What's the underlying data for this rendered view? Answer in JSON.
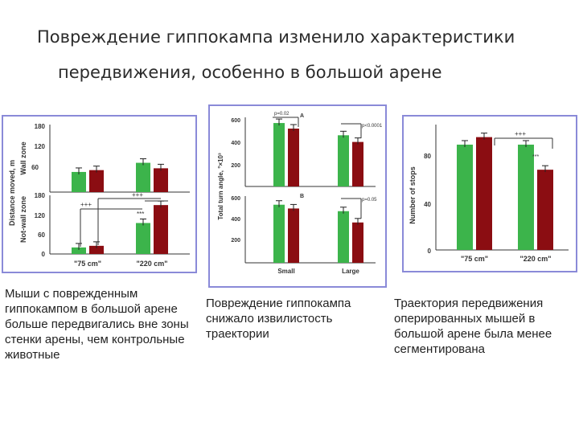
{
  "slide": {
    "title_line1": "Повреждение гиппокампа изменило характеристики",
    "title_line2": "передвижения, особенно в большой арене"
  },
  "colors": {
    "green": "#3cb44b",
    "red": "#8b0d12",
    "frame": "#8a8ad8"
  },
  "captions": {
    "left": "Мыши с поврежденным гиппокампом в большой арене больше передвигались вне зоны стенки арены, чем контрольные животные",
    "middle": "Повреждение гиппокампа снижало извилистость траектории",
    "right": "Траектория передвижения оперированных мышей в большой арене была менее сегментирована"
  },
  "chart_data": [
    {
      "type": "bar",
      "id": "distance",
      "ylabel": "Distance moved, m",
      "categories": [
        "\"75 cm\"",
        "\"220 cm\""
      ],
      "panels": [
        {
          "zone_label": "Wall zone",
          "yticks": [
            60,
            120,
            180
          ],
          "ylim": [
            0,
            180
          ],
          "series": [
            {
              "color": "green",
              "values": [
                55,
                80
              ]
            },
            {
              "color": "red",
              "values": [
                60,
                65
              ]
            }
          ],
          "annotations": []
        },
        {
          "zone_label": "Not-wall zone",
          "yticks": [
            0,
            60,
            120,
            180
          ],
          "ylim": [
            0,
            180
          ],
          "series": [
            {
              "color": "green",
              "values": [
                20,
                95
              ]
            },
            {
              "color": "red",
              "values": [
                25,
                150
              ]
            }
          ],
          "annotations": [
            "+++",
            "+++",
            "***"
          ]
        }
      ]
    },
    {
      "type": "bar",
      "id": "turn-angle",
      "ylabel": "Total turn angle, °×10³",
      "categories": [
        "Small",
        "Large"
      ],
      "panels": [
        {
          "label": "A",
          "yticks": [
            200,
            400,
            600
          ],
          "ylim": [
            0,
            650
          ],
          "series": [
            {
              "color": "green",
              "values": [
                570,
                460
              ]
            },
            {
              "color": "red",
              "values": [
                520,
                400
              ]
            }
          ],
          "annotations": [
            "p=0.02",
            "p<0.0001"
          ]
        },
        {
          "label": "B",
          "yticks": [
            200,
            400,
            600
          ],
          "ylim": [
            0,
            650
          ],
          "series": [
            {
              "color": "green",
              "values": [
                540,
                480
              ]
            },
            {
              "color": "red",
              "values": [
                505,
                375
              ]
            }
          ],
          "annotations": [
            "p=0.05"
          ]
        }
      ]
    },
    {
      "type": "bar",
      "id": "stops",
      "ylabel": "Number of stops",
      "categories": [
        "\"75 cm\"",
        "\"220 cm\""
      ],
      "yticks": [
        0,
        40,
        80
      ],
      "ylim": [
        0,
        100
      ],
      "series": [
        {
          "color": "green",
          "values": [
            84,
            84
          ]
        },
        {
          "color": "red",
          "values": [
            90,
            64
          ]
        }
      ],
      "annotations": [
        "+++",
        "***"
      ]
    }
  ]
}
